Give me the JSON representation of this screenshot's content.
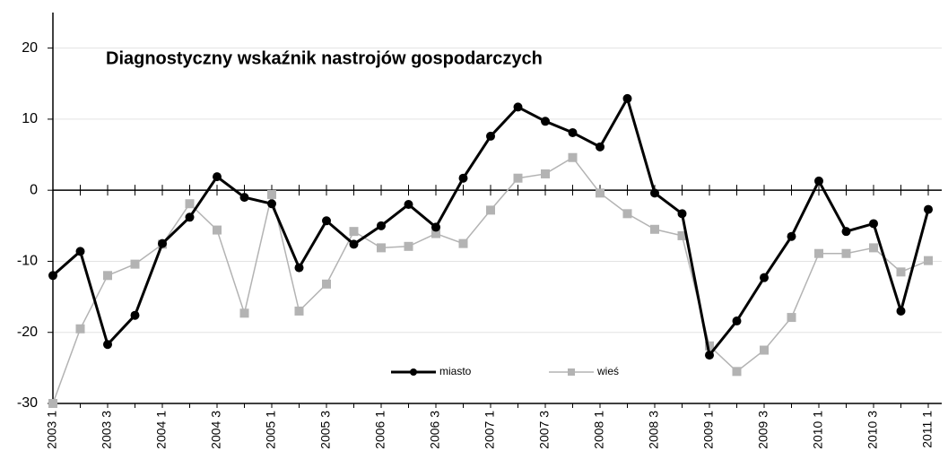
{
  "chart_data": {
    "type": "line",
    "title": "Diagnostyczny wskaźnik nastrojów gospodarczych",
    "categories": [
      "2003 1",
      null,
      "2003 3",
      null,
      "2004 1",
      null,
      "2004 3",
      null,
      "2005 1",
      null,
      "2005 3",
      null,
      "2006 1",
      null,
      "2006 3",
      null,
      "2007 1",
      null,
      "2007 3",
      null,
      "2008 1",
      null,
      "2008 3",
      null,
      "2009 1",
      null,
      "2009 3",
      null,
      "2010 1",
      null,
      "2010 3",
      null,
      "2011 1"
    ],
    "series": [
      {
        "name": "miasto",
        "color": "#000000",
        "marker": "circle",
        "values": [
          -12.0,
          -8.6,
          -21.7,
          -17.6,
          -7.5,
          -3.8,
          1.9,
          -1.0,
          -1.9,
          -10.9,
          -4.3,
          -7.6,
          -5.0,
          -2.0,
          -5.2,
          1.7,
          7.6,
          11.7,
          9.7,
          8.1,
          6.1,
          12.9,
          -0.4,
          -3.3,
          -23.2,
          -18.4,
          -12.3,
          -6.5,
          1.3,
          -5.8,
          -4.7,
          -17.0,
          -2.7
        ]
      },
      {
        "name": "wieś",
        "color": "#b3b3b3",
        "marker": "square",
        "values": [
          -30.0,
          -19.5,
          -12.0,
          -10.4,
          -7.6,
          -1.9,
          -5.6,
          -17.3,
          -0.6,
          -17.0,
          -13.2,
          -5.8,
          -8.1,
          -7.9,
          -6.1,
          -7.5,
          -2.8,
          1.7,
          2.3,
          4.6,
          -0.4,
          -3.3,
          -5.5,
          -6.4,
          -21.9,
          -25.5,
          -22.5,
          -17.9,
          -8.9,
          -8.9,
          -8.1,
          -11.5,
          -9.9
        ]
      }
    ],
    "ylim": [
      -30,
      25
    ],
    "yticks": [
      -30,
      -20,
      -10,
      0,
      10,
      20
    ],
    "grid": true
  }
}
